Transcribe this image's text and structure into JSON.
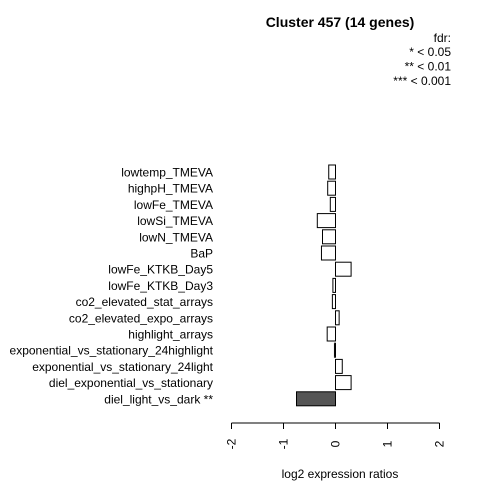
{
  "chart_data": {
    "type": "bar",
    "orientation": "horizontal",
    "title": "Cluster 457 (14 genes)",
    "legend": {
      "title": "fdr:",
      "entries": [
        "* < 0.05",
        "** < 0.01",
        "*** < 0.001"
      ],
      "position": "top-right"
    },
    "xlabel": "log2 expression ratios",
    "xlim": [
      -2,
      2
    ],
    "xticks": [
      "-2",
      "-1",
      "0",
      "1",
      "2"
    ],
    "grid": false,
    "categories": [
      "lowtemp_TMEVA",
      "highpH_TMEVA",
      "lowFe_TMEVA",
      "lowSi_TMEVA",
      "lowN_TMEVA",
      "BaP",
      "lowFe_KTKB_Day5",
      "lowFe_KTKB_Day3",
      "co2_elevated_stat_arrays",
      "co2_elevated_expo_arrays",
      "highlight_arrays",
      "exponential_vs_stationary_24highlight",
      "exponential_vs_stationary_24light",
      "diel_exponential_vs_stationary",
      "diel_light_vs_dark **"
    ],
    "values": [
      -0.13,
      -0.15,
      -0.1,
      -0.35,
      -0.25,
      -0.27,
      0.3,
      -0.05,
      -0.06,
      0.07,
      -0.16,
      -0.02,
      0.13,
      0.3,
      -0.75
    ],
    "significant": [
      false,
      false,
      false,
      false,
      false,
      false,
      false,
      false,
      false,
      false,
      false,
      false,
      false,
      false,
      true
    ],
    "colors": {
      "normal": "#ffffff",
      "significant": "#555555",
      "stroke": "#000000"
    }
  }
}
